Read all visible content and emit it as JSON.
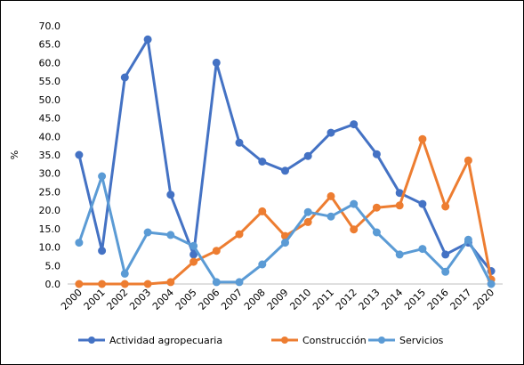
{
  "chart_data": {
    "type": "line",
    "ylabel": "%",
    "xlabel": "",
    "ylim": [
      0,
      70
    ],
    "yticks": [
      "0.0",
      "5.0",
      "10.0",
      "15.0",
      "20.0",
      "25.0",
      "30.0",
      "35.0",
      "40.0",
      "45.0",
      "50.0",
      "55.0",
      "60.0",
      "65.0",
      "70.0"
    ],
    "categories": [
      "2000",
      "2001",
      "2002",
      "2003",
      "2004",
      "2005",
      "2006",
      "2007",
      "2008",
      "2009",
      "2010",
      "2011",
      "2012",
      "2013",
      "2014",
      "2015",
      "2016",
      "2017",
      "2020"
    ],
    "grid": false,
    "legend": "bottom",
    "series": [
      {
        "name": "Actividad agropecuaria",
        "color": "#4472C4",
        "values": [
          35.0,
          9.0,
          56.0,
          66.3,
          24.2,
          8.0,
          60.0,
          38.3,
          33.2,
          30.7,
          34.7,
          41.0,
          43.3,
          35.2,
          24.7,
          21.7,
          8.0,
          11.2,
          3.5
        ]
      },
      {
        "name": "Construcción",
        "color": "#ED7D31",
        "values": [
          0.0,
          0.0,
          0.0,
          0.0,
          0.5,
          6.0,
          9.0,
          13.5,
          19.7,
          13.0,
          16.8,
          23.8,
          14.8,
          20.7,
          21.3,
          39.3,
          21.0,
          33.5,
          1.2
        ]
      },
      {
        "name": "Servicios",
        "color": "#5B9BD5",
        "values": [
          11.2,
          29.2,
          2.8,
          14.0,
          13.3,
          10.3,
          0.5,
          0.5,
          5.3,
          11.2,
          19.5,
          18.3,
          21.7,
          14.0,
          8.0,
          9.5,
          3.3,
          12.0,
          0.0
        ]
      }
    ]
  }
}
